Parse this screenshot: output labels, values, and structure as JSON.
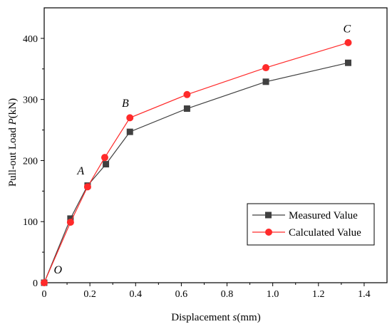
{
  "chart_data": {
    "type": "line",
    "xlabel": {
      "prefix": "Displacement ",
      "var": "s",
      "suffix": "(mm)"
    },
    "ylabel": {
      "prefix": "Pull-out Load ",
      "var": "P",
      "suffix": "(kN)"
    },
    "xlim": [
      0,
      1.5
    ],
    "ylim": [
      0,
      450
    ],
    "xticks": [
      0,
      0.2,
      0.4,
      0.6,
      0.8,
      1.0,
      1.2,
      1.4
    ],
    "xtick_labels": [
      "0",
      "0.2",
      "0.4",
      "0.6",
      "0.8",
      "1.0",
      "1.2",
      "1.4"
    ],
    "yticks": [
      0,
      100,
      200,
      300,
      400
    ],
    "ytick_labels": [
      "0",
      "100",
      "200",
      "300",
      "400"
    ],
    "grid": false,
    "legend_position": "bottom-right",
    "series": [
      {
        "name": "Measured Value",
        "marker": "square",
        "color": "#404040",
        "x": [
          0,
          0.115,
          0.19,
          0.27,
          0.375,
          0.625,
          0.97,
          1.33
        ],
        "y": [
          0,
          105,
          159,
          194,
          247,
          285,
          329,
          360
        ]
      },
      {
        "name": "Calculated Value",
        "marker": "circle",
        "color": "#ff2a2a",
        "x": [
          0,
          0.115,
          0.19,
          0.265,
          0.375,
          0.625,
          0.97,
          1.33
        ],
        "y": [
          0,
          99,
          157,
          205,
          270,
          308,
          352,
          393
        ]
      }
    ],
    "annotations": [
      {
        "text": "O",
        "x": 0.06,
        "y": 15
      },
      {
        "text": "A",
        "x": 0.16,
        "y": 177
      },
      {
        "text": "B",
        "x": 0.355,
        "y": 288
      },
      {
        "text": "C",
        "x": 1.325,
        "y": 410
      }
    ]
  }
}
